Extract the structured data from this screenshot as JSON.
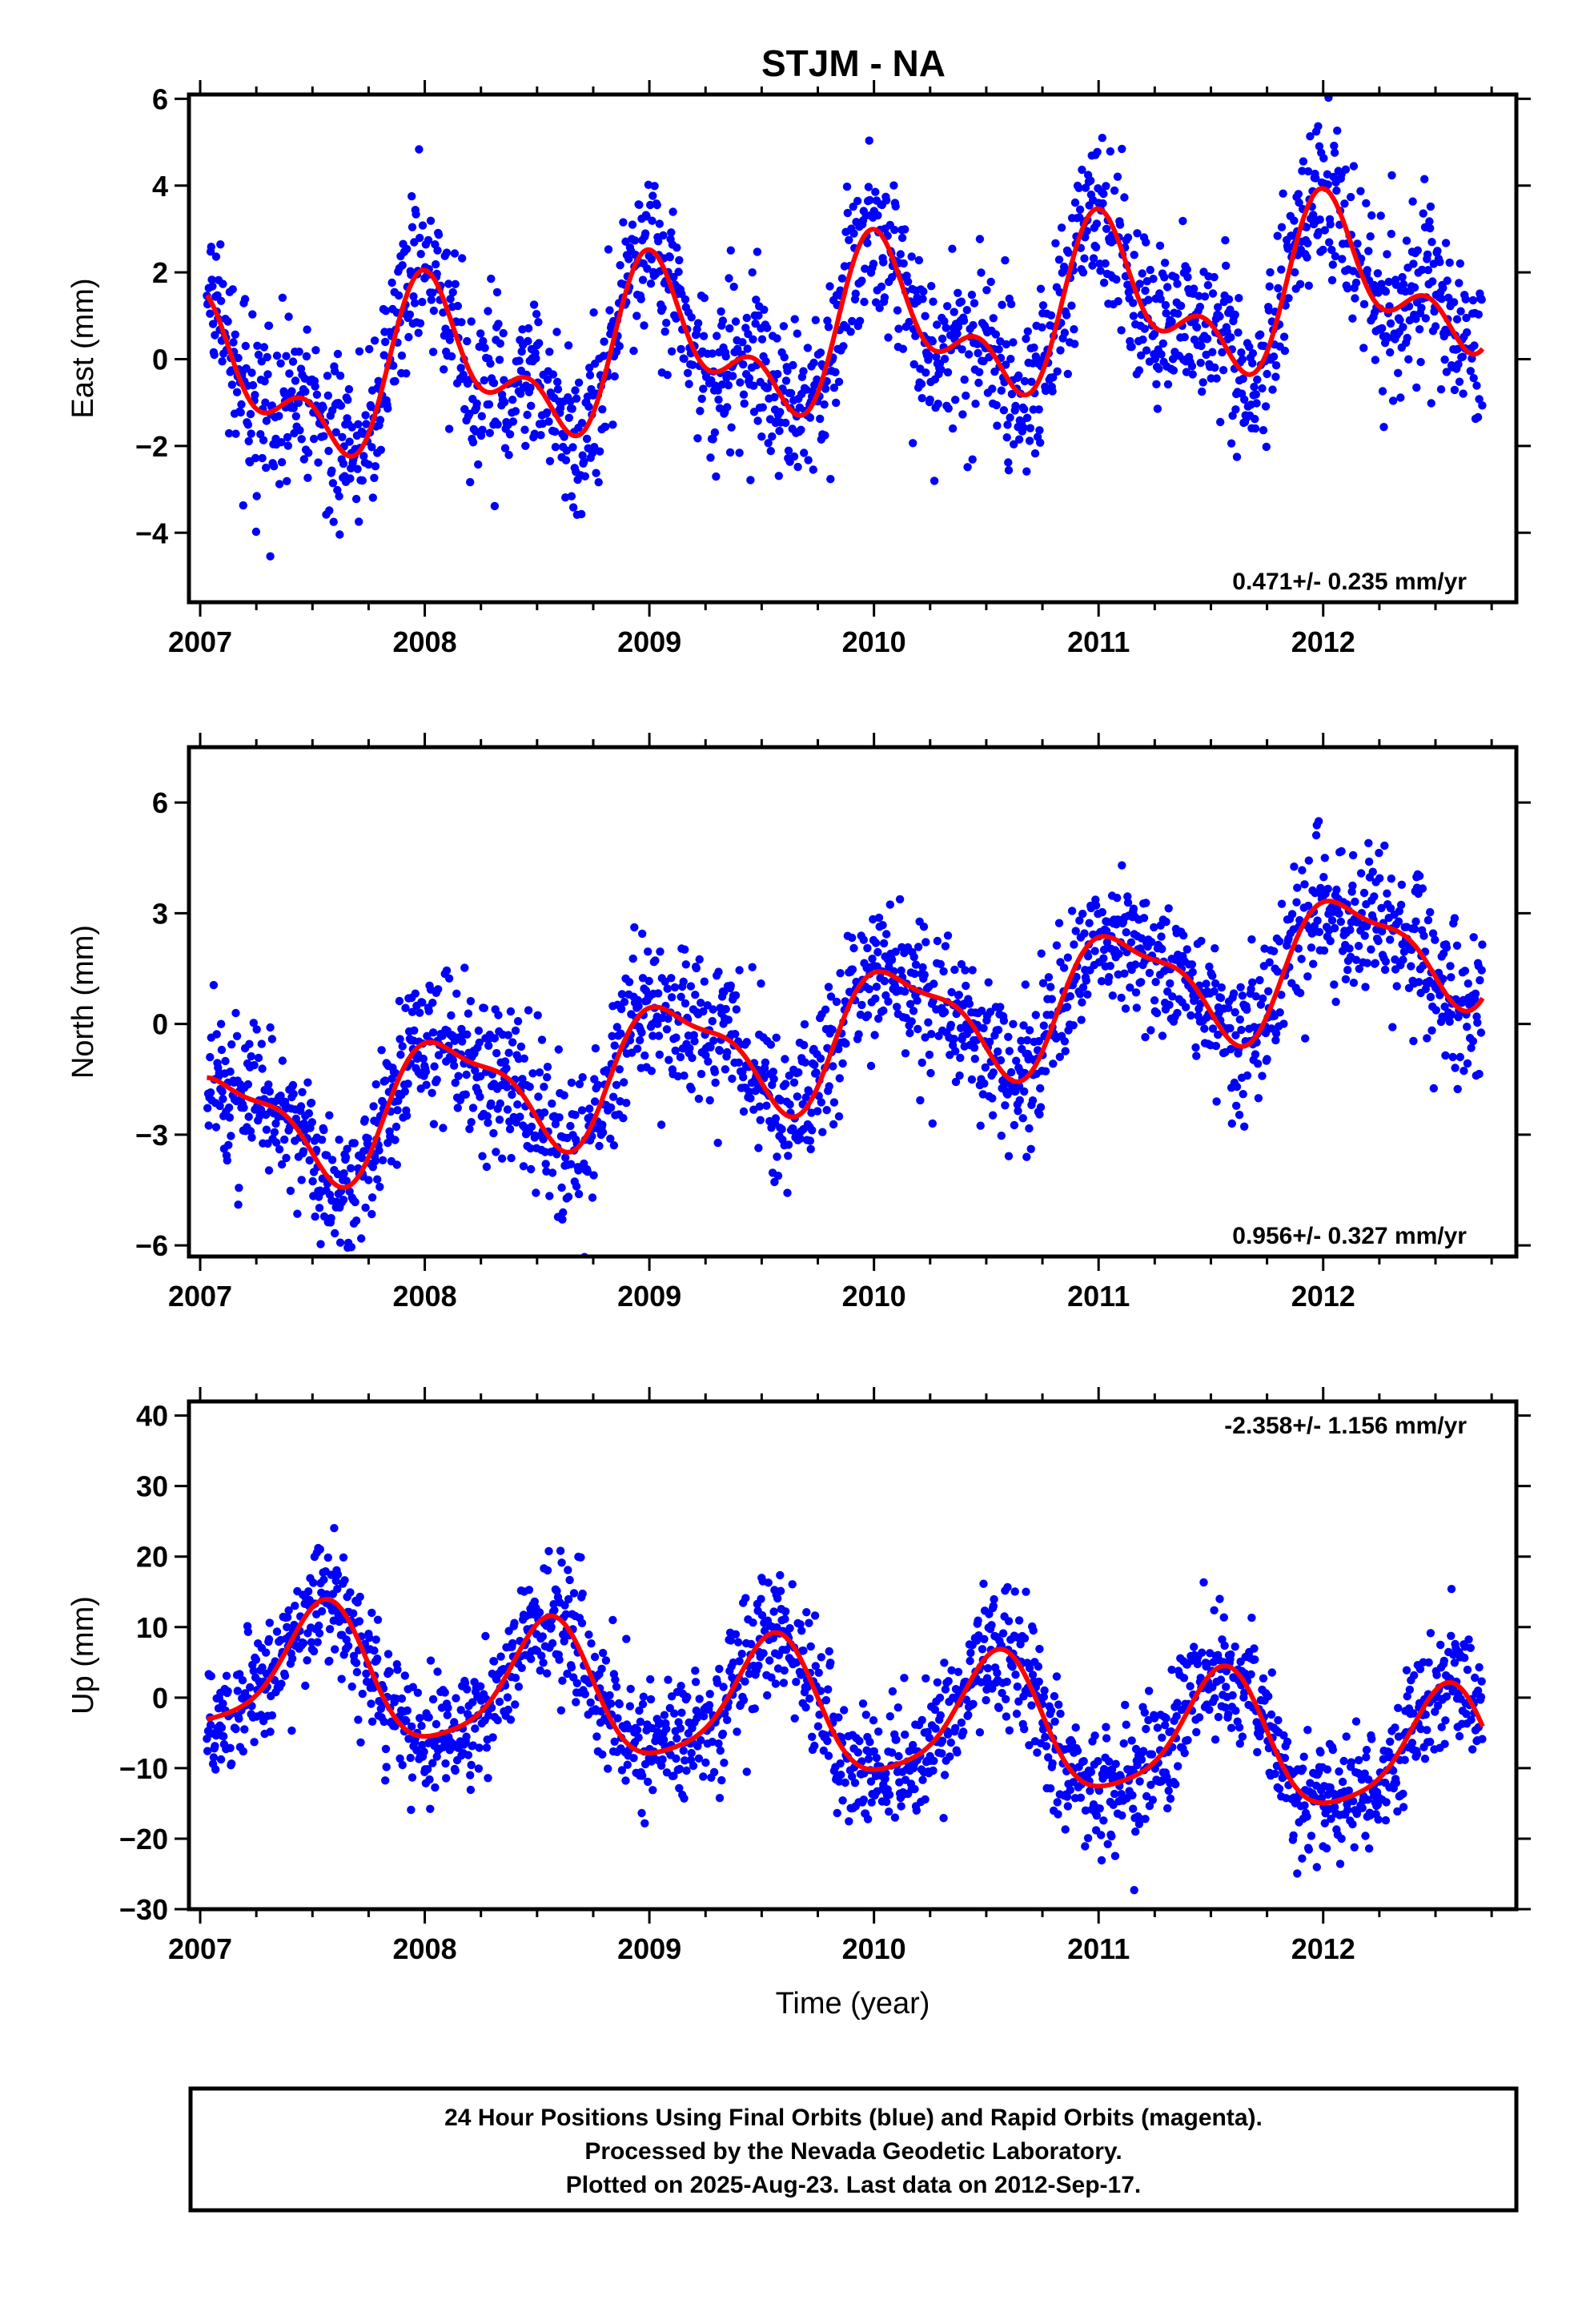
{
  "title": "STJM - NA",
  "colors": {
    "final_orbits": "#0000ff",
    "rapid_orbits": "#ff00ff",
    "model_fit": "#ff0000",
    "frame": "#000000"
  },
  "chart_data": [
    {
      "type": "scatter",
      "name": "east",
      "ylabel": "East (mm)",
      "xlabel": "",
      "xlim": [
        2006.95,
        2012.86
      ],
      "ylim": [
        -5.6,
        6.1
      ],
      "x_ticks": [
        2007,
        2008,
        2009,
        2010,
        2011,
        2012
      ],
      "y_ticks": [
        -4,
        -2,
        0,
        2,
        4,
        6
      ],
      "rate_text": "0.471+/- 0.235 mm/yr",
      "rate_position": "bottom-right",
      "grid": false,
      "data_start": 2007.03,
      "data_end": 2012.71,
      "trend": {
        "slope": 0.471,
        "offset": -0.75
      },
      "seasonal": [
        {
          "period": 1.0,
          "amplitude": 1.5,
          "phase": 1.3
        },
        {
          "period": 0.5,
          "amplitude": 0.95,
          "phase": 1.9
        }
      ],
      "noise": 0.95,
      "gaps": [],
      "curve_end": 2012.71
    },
    {
      "type": "scatter",
      "name": "north",
      "ylabel": "North (mm)",
      "xlabel": "",
      "xlim": [
        2006.95,
        2012.86
      ],
      "ylim": [
        -6.3,
        7.5
      ],
      "x_ticks": [
        2007,
        2008,
        2009,
        2010,
        2011,
        2012
      ],
      "y_ticks": [
        -6,
        -3,
        0,
        3,
        6
      ],
      "rate_text": "0.956+/- 0.327 mm/yr",
      "rate_position": "bottom-right",
      "grid": false,
      "data_start": 2007.03,
      "data_end": 2012.71,
      "trend": {
        "slope": 0.956,
        "offset": -3.0
      },
      "seasonal": [
        {
          "period": 1.0,
          "amplitude": 1.6,
          "phase": 0.9
        },
        {
          "period": 0.5,
          "amplitude": 0.5,
          "phase": 2.5
        }
      ],
      "noise": 1.0,
      "gaps": [],
      "curve_end": 2012.71
    },
    {
      "type": "scatter",
      "name": "up",
      "ylabel": "Up (mm)",
      "xlabel": "Time (year)",
      "xlim": [
        2006.95,
        2012.86
      ],
      "ylim": [
        -30,
        42
      ],
      "x_ticks": [
        2007,
        2008,
        2009,
        2010,
        2011,
        2012
      ],
      "y_ticks": [
        -30,
        -20,
        -10,
        0,
        10,
        20,
        30,
        40
      ],
      "rate_text": "-2.358+/- 1.156 mm/yr",
      "rate_position": "top-right",
      "grid": false,
      "data_start": 2007.03,
      "data_end": 2012.71,
      "trend": {
        "slope": -2.358,
        "offset": 4.5
      },
      "seasonal": [
        {
          "period": 1.0,
          "amplitude": 9.0,
          "phase": 4.4
        },
        {
          "period": 0.5,
          "amplitude": 1.8,
          "phase": 0.5
        }
      ],
      "noise": 4.5,
      "gaps": [],
      "curve_end": 2012.71
    }
  ],
  "footer": {
    "line1": "24 Hour Positions Using Final Orbits (blue) and Rapid Orbits (magenta).",
    "line2": "Processed by the Nevada Geodetic Laboratory.",
    "line3": "Plotted on 2025-Aug-23. Last data on 2012-Sep-17."
  }
}
